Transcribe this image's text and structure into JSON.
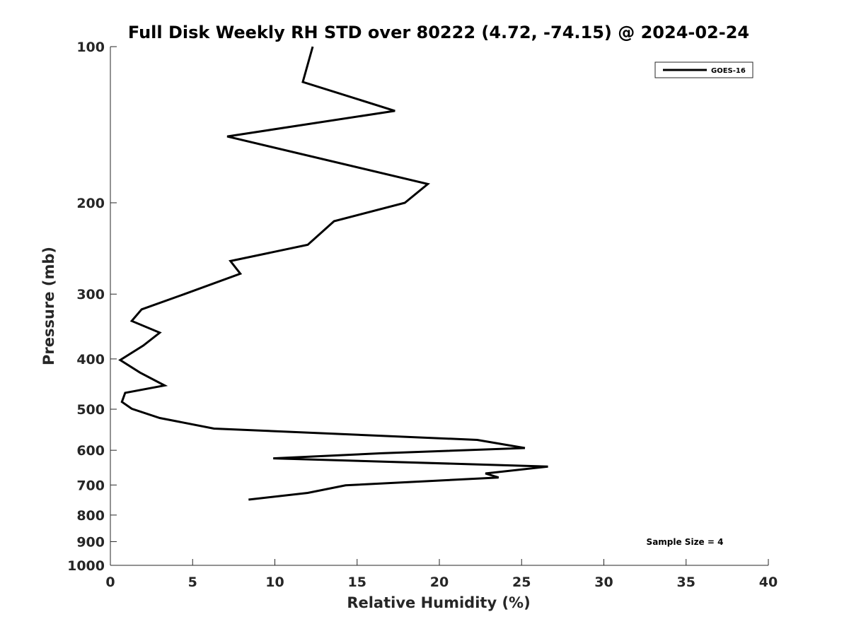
{
  "chart_data": {
    "type": "line",
    "title": "Full Disk Weekly RH STD over 80222 (4.72, -74.15) @ 2024-02-24",
    "xlabel": "Relative Humidity (%)",
    "ylabel": "Pressure (mb)",
    "xlim": [
      0,
      40
    ],
    "ylim": [
      100,
      1000
    ],
    "yscale": "log",
    "y_reversed": true,
    "xticks": [
      0,
      5,
      10,
      15,
      20,
      25,
      30,
      35,
      40
    ],
    "yticks": [
      100,
      200,
      300,
      400,
      500,
      600,
      700,
      800,
      900,
      1000
    ],
    "grid": false,
    "legend_position": "top-right",
    "annotation": "Sample Size = 4",
    "series": [
      {
        "name": "GOES-16",
        "color": "#000000",
        "x": [
          12.3,
          11.7,
          17.3,
          7.1,
          19.3,
          17.9,
          13.6,
          12.0,
          7.3,
          7.9,
          4.5,
          1.9,
          1.3,
          3.0,
          2.0,
          0.6,
          1.8,
          3.3,
          0.9,
          0.7,
          1.3,
          3.0,
          6.3,
          22.3,
          25.2,
          16.5,
          9.9,
          26.6,
          22.8,
          23.6,
          14.3,
          12.0,
          8.4
        ],
        "y": [
          100,
          117,
          133,
          149,
          184,
          200,
          217,
          241,
          259,
          274,
          300,
          321,
          338,
          356,
          377,
          402,
          425,
          450,
          465,
          484,
          499,
          520,
          545,
          573,
          594,
          608,
          622,
          645,
          665,
          677,
          701,
          725,
          747
        ]
      }
    ]
  }
}
